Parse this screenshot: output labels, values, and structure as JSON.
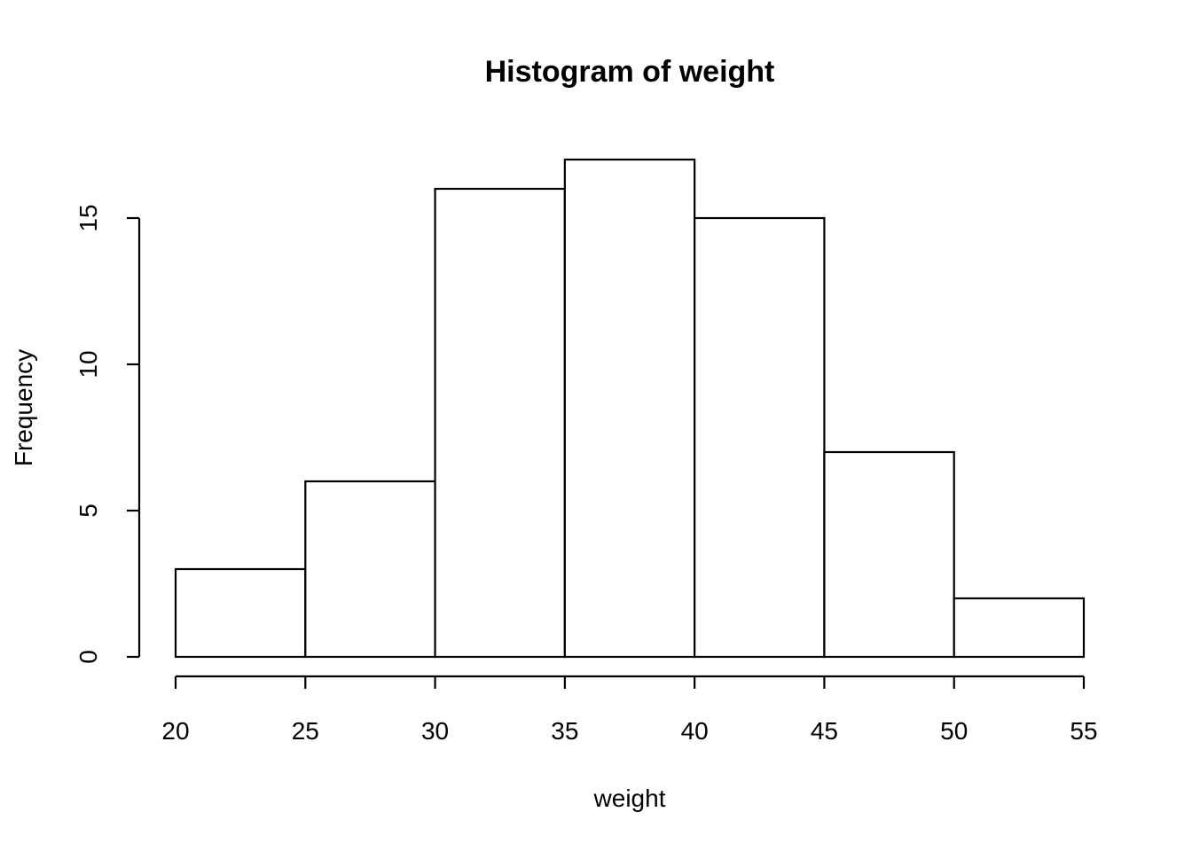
{
  "chart_data": {
    "type": "bar",
    "title": "Histogram of weight",
    "xlabel": "weight",
    "ylabel": "Frequency",
    "bins": [
      {
        "start": 20,
        "end": 25,
        "count": 3
      },
      {
        "start": 25,
        "end": 30,
        "count": 6
      },
      {
        "start": 30,
        "end": 35,
        "count": 16
      },
      {
        "start": 35,
        "end": 40,
        "count": 17
      },
      {
        "start": 40,
        "end": 45,
        "count": 15
      },
      {
        "start": 45,
        "end": 50,
        "count": 7
      },
      {
        "start": 50,
        "end": 55,
        "count": 2
      }
    ],
    "x_ticks": [
      "20",
      "25",
      "30",
      "35",
      "40",
      "45",
      "50",
      "55"
    ],
    "y_ticks": [
      "0",
      "5",
      "10",
      "15"
    ],
    "xlim": [
      20,
      55
    ],
    "ylim": [
      0,
      17
    ],
    "grid": false,
    "colors": {
      "bar_fill": "#ffffff",
      "bar_stroke": "#000000"
    }
  }
}
